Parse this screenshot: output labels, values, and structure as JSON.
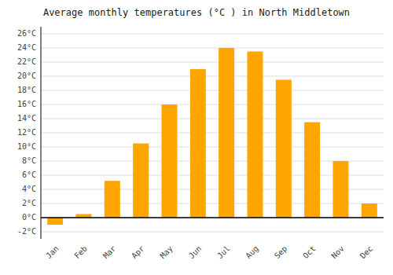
{
  "chart_data": {
    "type": "bar",
    "title": "Average monthly temperatures (°C ) in North Middletown",
    "categories": [
      "Jan",
      "Feb",
      "Mar",
      "Apr",
      "May",
      "Jun",
      "Jul",
      "Aug",
      "Sep",
      "Oct",
      "Nov",
      "Dec"
    ],
    "values": [
      -1.0,
      0.5,
      5.2,
      10.5,
      16.0,
      21.0,
      24.0,
      23.5,
      19.5,
      13.5,
      8.0,
      2.0
    ],
    "color": "#FFA500",
    "ylim": [
      -3,
      27
    ],
    "yticks": [
      {
        "value": -2,
        "label": "-2°C"
      },
      {
        "value": 0,
        "label": "0°C"
      },
      {
        "value": 2,
        "label": "2°C"
      },
      {
        "value": 4,
        "label": "4°C"
      },
      {
        "value": 6,
        "label": "6°C"
      },
      {
        "value": 8,
        "label": "8°C"
      },
      {
        "value": 10,
        "label": "10°C"
      },
      {
        "value": 12,
        "label": "12°C"
      },
      {
        "value": 14,
        "label": "14°C"
      },
      {
        "value": 16,
        "label": "16°C"
      },
      {
        "value": 18,
        "label": "18°C"
      },
      {
        "value": 20,
        "label": "20°C"
      },
      {
        "value": 22,
        "label": "22°C"
      },
      {
        "value": 24,
        "label": "24°C"
      },
      {
        "value": 26,
        "label": "26°C"
      }
    ],
    "grid": true
  }
}
